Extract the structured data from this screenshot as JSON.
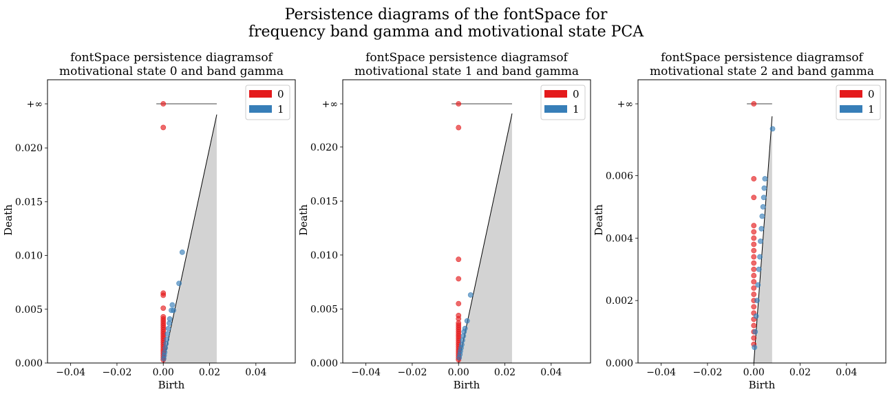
{
  "suptitle_line1": "Persistence diagrams of the fontSpace for",
  "suptitle_line2": "frequency band gamma and motivational state PCA",
  "colors": {
    "h0": "#e41a1c",
    "h1": "#377eb8",
    "diagonal_fill": "#d3d3d3"
  },
  "chart_data": [
    {
      "type": "scatter",
      "title_line1": "fontSpace persistence diagramsof",
      "title_line2": "motivational state 0 and band gamma",
      "xlabel": "Birth",
      "ylabel": "Death",
      "xlim": [
        -0.05,
        0.057
      ],
      "ylim": [
        0,
        0.0263
      ],
      "inf_value": 0.0241,
      "diag_max": 0.0231,
      "xticks": [
        "−0.04",
        "−0.02",
        "0.00",
        "0.02",
        "0.04"
      ],
      "xtick_values": [
        -0.04,
        -0.02,
        0,
        0.02,
        0.04
      ],
      "yticks": [
        "0.000",
        "0.005",
        "0.010",
        "0.015",
        "0.020"
      ],
      "ytick_values": [
        0,
        0.005,
        0.01,
        0.015,
        0.02
      ],
      "inf_label": "+∞",
      "legend": [
        "0",
        "1"
      ],
      "legend_position": "top-right",
      "series": [
        {
          "name": "0",
          "points": [
            [
              0,
              0.0241
            ],
            [
              0,
              0.0219
            ],
            [
              0,
              0.0065
            ],
            [
              0,
              0.0063
            ],
            [
              0,
              0.0051
            ],
            [
              0,
              0.0043
            ],
            [
              0,
              0.0041
            ],
            [
              0,
              0.0039
            ],
            [
              0,
              0.0037
            ],
            [
              0,
              0.0035
            ],
            [
              0,
              0.0033
            ],
            [
              0,
              0.0031
            ],
            [
              0,
              0.0029
            ],
            [
              0,
              0.0027
            ],
            [
              0,
              0.0025
            ],
            [
              0,
              0.0023
            ],
            [
              0,
              0.0021
            ],
            [
              0,
              0.0019
            ],
            [
              0,
              0.0017
            ],
            [
              0,
              0.0015
            ],
            [
              0,
              0.0013
            ],
            [
              0,
              0.0011
            ],
            [
              0,
              0.0009
            ],
            [
              0,
              0.0007
            ],
            [
              0,
              0.0005
            ],
            [
              0,
              0.0003
            ]
          ]
        },
        {
          "name": "1",
          "points": [
            [
              0.0082,
              0.0103
            ],
            [
              0.0068,
              0.0074
            ],
            [
              0.0039,
              0.0054
            ],
            [
              0.0035,
              0.0049
            ],
            [
              0.0044,
              0.0049
            ],
            [
              0.0028,
              0.0041
            ],
            [
              0.0026,
              0.0037
            ],
            [
              0.0022,
              0.0032
            ],
            [
              0.0018,
              0.0027
            ],
            [
              0.0015,
              0.0022
            ],
            [
              0.0012,
              0.0018
            ],
            [
              0.0009,
              0.0014
            ],
            [
              0.0006,
              0.001
            ],
            [
              0.0004,
              0.0007
            ],
            [
              0.0002,
              0.0004
            ]
          ]
        }
      ]
    },
    {
      "type": "scatter",
      "title_line1": "fontSpace persistence diagramsof",
      "title_line2": "motivational state 1 and band gamma",
      "xlabel": "Birth",
      "ylabel": "Death",
      "xlim": [
        -0.05,
        0.057
      ],
      "ylim": [
        0,
        0.0263
      ],
      "inf_value": 0.024,
      "diag_max": 0.0231,
      "xticks": [
        "−0.04",
        "−0.02",
        "0.00",
        "0.02",
        "0.04"
      ],
      "xtick_values": [
        -0.04,
        -0.02,
        0,
        0.02,
        0.04
      ],
      "yticks": [
        "0.000",
        "0.005",
        "0.010",
        "0.015",
        "0.020"
      ],
      "ytick_values": [
        0,
        0.005,
        0.01,
        0.015,
        0.02
      ],
      "inf_label": "+∞",
      "legend": [
        "0",
        "1"
      ],
      "legend_position": "top-right",
      "series": [
        {
          "name": "0",
          "points": [
            [
              0,
              0.024
            ],
            [
              0,
              0.0218
            ],
            [
              0,
              0.0096
            ],
            [
              0,
              0.0078
            ],
            [
              0,
              0.0055
            ],
            [
              0,
              0.0044
            ],
            [
              0,
              0.0041
            ],
            [
              0,
              0.0037
            ],
            [
              0,
              0.0035
            ],
            [
              0,
              0.0033
            ],
            [
              0,
              0.0031
            ],
            [
              0,
              0.0029
            ],
            [
              0,
              0.0027
            ],
            [
              0,
              0.0025
            ],
            [
              0,
              0.0023
            ],
            [
              0,
              0.0021
            ],
            [
              0,
              0.0019
            ],
            [
              0,
              0.0017
            ],
            [
              0,
              0.0015
            ],
            [
              0,
              0.0013
            ],
            [
              0,
              0.0011
            ],
            [
              0,
              0.0009
            ],
            [
              0,
              0.0007
            ],
            [
              0,
              0.0005
            ],
            [
              0,
              0.0003
            ]
          ]
        },
        {
          "name": "1",
          "points": [
            [
              0.0052,
              0.0063
            ],
            [
              0.0037,
              0.0039
            ],
            [
              0.0028,
              0.0032
            ],
            [
              0.0024,
              0.0029
            ],
            [
              0.0021,
              0.0025
            ],
            [
              0.0017,
              0.0021
            ],
            [
              0.0014,
              0.0017
            ],
            [
              0.0011,
              0.0014
            ],
            [
              0.0008,
              0.0011
            ],
            [
              0.0006,
              0.0008
            ],
            [
              0.0003,
              0.0005
            ]
          ]
        }
      ]
    },
    {
      "type": "scatter",
      "title_line1": "fontSpace persistence diagramsof",
      "title_line2": "motivational state 2 and band gamma",
      "xlabel": "Birth",
      "ylabel": "Death",
      "xlim": [
        -0.05,
        0.057
      ],
      "ylim": [
        0,
        0.0263
      ],
      "inf_value": 0.0083,
      "diag_max": 0.0079,
      "xticks": [
        "−0.04",
        "−0.02",
        "0.00",
        "0.02",
        "0.04"
      ],
      "xtick_values": [
        -0.04,
        -0.02,
        0,
        0.02,
        0.04
      ],
      "yticks": [
        "0.000",
        "0.002",
        "0.004",
        "0.006"
      ],
      "ytick_values": [
        0,
        0.002,
        0.004,
        0.006
      ],
      "inf_label": "+∞",
      "legend": [
        "0",
        "1"
      ],
      "legend_position": "top-right",
      "series": [
        {
          "name": "0",
          "points": [
            [
              0,
              0.0083
            ],
            [
              0,
              0.0059
            ],
            [
              0,
              0.0053
            ],
            [
              0,
              0.0044
            ],
            [
              0,
              0.0042
            ],
            [
              0,
              0.004
            ],
            [
              0,
              0.0038
            ],
            [
              0,
              0.0036
            ],
            [
              0,
              0.0034
            ],
            [
              0,
              0.0032
            ],
            [
              0,
              0.003
            ],
            [
              0,
              0.0028
            ],
            [
              0,
              0.0026
            ],
            [
              0,
              0.0024
            ],
            [
              0,
              0.0022
            ],
            [
              0,
              0.002
            ],
            [
              0,
              0.0018
            ],
            [
              0,
              0.0016
            ],
            [
              0,
              0.0014
            ],
            [
              0,
              0.0012
            ],
            [
              0,
              0.001
            ],
            [
              0,
              0.0008
            ],
            [
              0,
              0.0006
            ]
          ]
        },
        {
          "name": "1",
          "points": [
            [
              0.0081,
              0.0075
            ],
            [
              0.0048,
              0.0059
            ],
            [
              0.0045,
              0.0056
            ],
            [
              0.0043,
              0.0053
            ],
            [
              0.004,
              0.005
            ],
            [
              0.0036,
              0.0047
            ],
            [
              0.0033,
              0.0043
            ],
            [
              0.0029,
              0.0039
            ],
            [
              0.0026,
              0.0034
            ],
            [
              0.0022,
              0.003
            ],
            [
              0.0018,
              0.0025
            ],
            [
              0.0014,
              0.002
            ],
            [
              0.001,
              0.0015
            ],
            [
              0.0006,
              0.001
            ],
            [
              0.0003,
              0.0005
            ]
          ]
        }
      ]
    }
  ]
}
